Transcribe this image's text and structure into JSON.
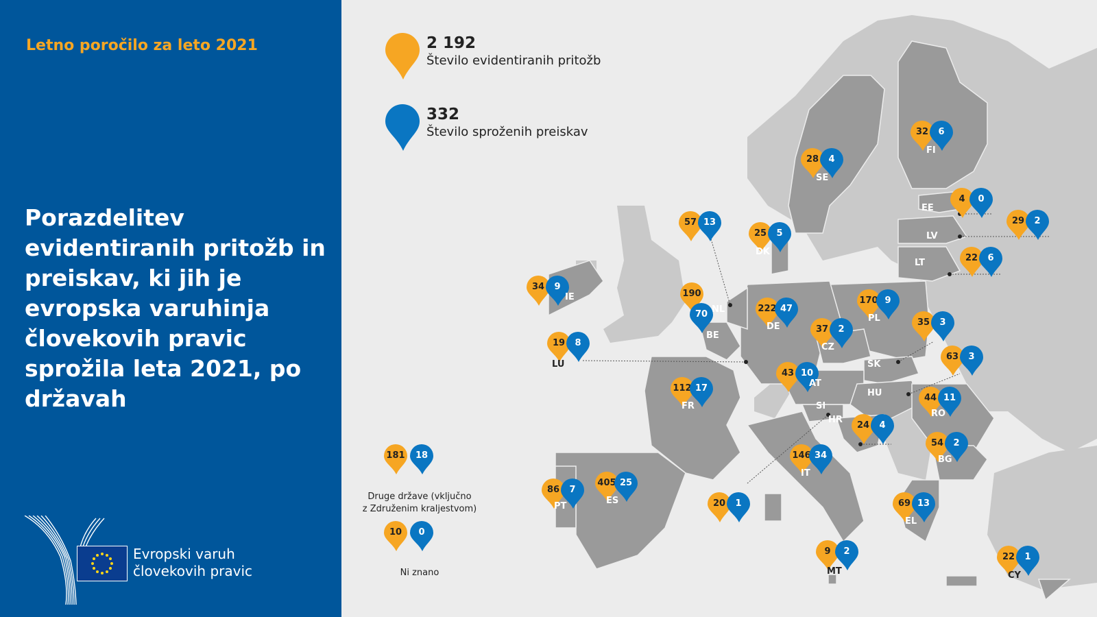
{
  "subtitle": "Letno poročilo za leto 2021",
  "title": "Porazdelitev evidentiranih pritožb in preiskav, ki jih je evropska varuhinja človekovih pravic sprožila leta 2021, po državah",
  "logo": {
    "line1": "Evropski varuh",
    "line2": "človekovih pravic"
  },
  "legend": {
    "complaints_total": "2 192",
    "complaints_label": "Število evidentiranih pritožb",
    "inquiries_total": "332",
    "inquiries_label": "Število sproženih preiskav"
  },
  "colors": {
    "complaints": "#f6a623",
    "inquiries": "#0a76c2",
    "panel": "#00569b",
    "country": "#9a9a9a",
    "other_land": "#c9c9c9"
  },
  "other": {
    "complaints": "181",
    "inquiries": "18",
    "label1": "Druge države (vključno",
    "label2": "z Združenim kraljestvom)",
    "unknown_complaints": "10",
    "unknown_inquiries": "0",
    "unknown_label": "Ni znano"
  },
  "countries": [
    {
      "code": "FI",
      "complaints": "32",
      "inquiries": "6"
    },
    {
      "code": "SE",
      "complaints": "28",
      "inquiries": "4"
    },
    {
      "code": "EE",
      "complaints": "4",
      "inquiries": "0"
    },
    {
      "code": "LV",
      "complaints": "29",
      "inquiries": "2"
    },
    {
      "code": "LT",
      "complaints": "22",
      "inquiries": "6"
    },
    {
      "code": "DK",
      "complaints": "25",
      "inquiries": "5"
    },
    {
      "code": "NL",
      "complaints": "57",
      "inquiries": "13"
    },
    {
      "code": "IE",
      "complaints": "34",
      "inquiries": "9"
    },
    {
      "code": "BE",
      "complaints": "190",
      "inquiries": "70"
    },
    {
      "code": "DE",
      "complaints": "222",
      "inquiries": "47"
    },
    {
      "code": "PL",
      "complaints": "170",
      "inquiries": "9"
    },
    {
      "code": "CZ",
      "complaints": "37",
      "inquiries": "2"
    },
    {
      "code": "LU",
      "complaints": "19",
      "inquiries": "8"
    },
    {
      "code": "SK",
      "complaints": "35",
      "inquiries": "3"
    },
    {
      "code": "HU",
      "complaints": "63",
      "inquiries": "3"
    },
    {
      "code": "AT",
      "complaints": "43",
      "inquiries": "10"
    },
    {
      "code": "FR",
      "complaints": "112",
      "inquiries": "17"
    },
    {
      "code": "RO",
      "complaints": "44",
      "inquiries": "11"
    },
    {
      "code": "HR",
      "complaints": "24",
      "inquiries": "4"
    },
    {
      "code": "BG",
      "complaints": "54",
      "inquiries": "2"
    },
    {
      "code": "IT",
      "complaints": "146",
      "inquiries": "34"
    },
    {
      "code": "SI",
      "complaints": "20",
      "inquiries": "1"
    },
    {
      "code": "ES",
      "complaints": "405",
      "inquiries": "25"
    },
    {
      "code": "PT",
      "complaints": "86",
      "inquiries": "7"
    },
    {
      "code": "EL",
      "complaints": "69",
      "inquiries": "13"
    },
    {
      "code": "MT",
      "complaints": "9",
      "inquiries": "2"
    },
    {
      "code": "CY",
      "complaints": "22",
      "inquiries": "1"
    }
  ]
}
